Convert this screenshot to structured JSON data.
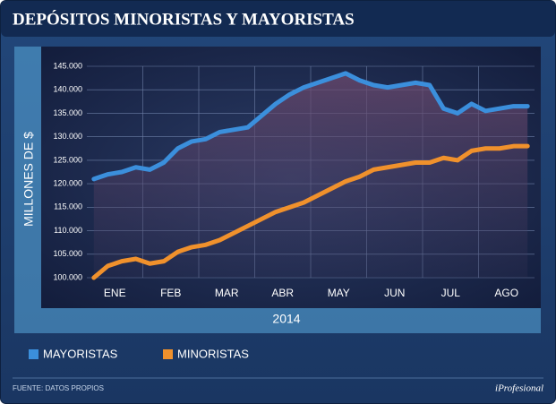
{
  "chart_data": {
    "type": "line",
    "title": "DEPÓSITOS MINORISTAS Y MAYORISTAS",
    "y_label": "MILLONES DE $",
    "x_label": "2014",
    "source": "FUENTE: DATOS PROPIOS",
    "brand": "iProfesional",
    "categories": [
      null,
      "ENE",
      null,
      null,
      null,
      "FEB",
      null,
      null,
      null,
      "MAR",
      null,
      null,
      null,
      "ABR",
      null,
      null,
      null,
      "MAY",
      null,
      null,
      null,
      "JUN",
      null,
      null,
      null,
      "JUL",
      null,
      null,
      null,
      "AGO",
      null,
      null
    ],
    "series": [
      {
        "name": "MAYORISTAS",
        "color": "#3b8fdc",
        "values": [
          121000,
          122000,
          122500,
          123500,
          123000,
          124500,
          127500,
          129000,
          129500,
          131000,
          131500,
          132000,
          134500,
          137000,
          139000,
          140500,
          141500,
          142500,
          143500,
          142000,
          141000,
          140500,
          141000,
          141500,
          141000,
          136000,
          135000,
          137000,
          135500,
          136000,
          136500,
          136500
        ]
      },
      {
        "name": "MINORISTAS",
        "color": "#f0912c",
        "values": [
          100000,
          102500,
          103500,
          104000,
          103000,
          103500,
          105500,
          106500,
          107000,
          108000,
          109500,
          111000,
          112500,
          114000,
          115000,
          116000,
          117500,
          119000,
          120500,
          121500,
          123000,
          123500,
          124000,
          124500,
          124500,
          125500,
          125000,
          127000,
          127500,
          127500,
          128000,
          128000
        ]
      }
    ],
    "ylim": [
      100000,
      145000
    ],
    "yticks": [
      {
        "value": 100000,
        "label": "100.000"
      },
      {
        "value": 105000,
        "label": "105.000"
      },
      {
        "value": 110000,
        "label": "110.000"
      },
      {
        "value": 115000,
        "label": "115.000"
      },
      {
        "value": 120000,
        "label": "120.000"
      },
      {
        "value": 125000,
        "label": "125.000"
      },
      {
        "value": 130000,
        "label": "130.000"
      },
      {
        "value": 135000,
        "label": "135.000"
      },
      {
        "value": 140000,
        "label": "140.000"
      },
      {
        "value": 145000,
        "label": "145.000"
      }
    ],
    "grid": true
  }
}
